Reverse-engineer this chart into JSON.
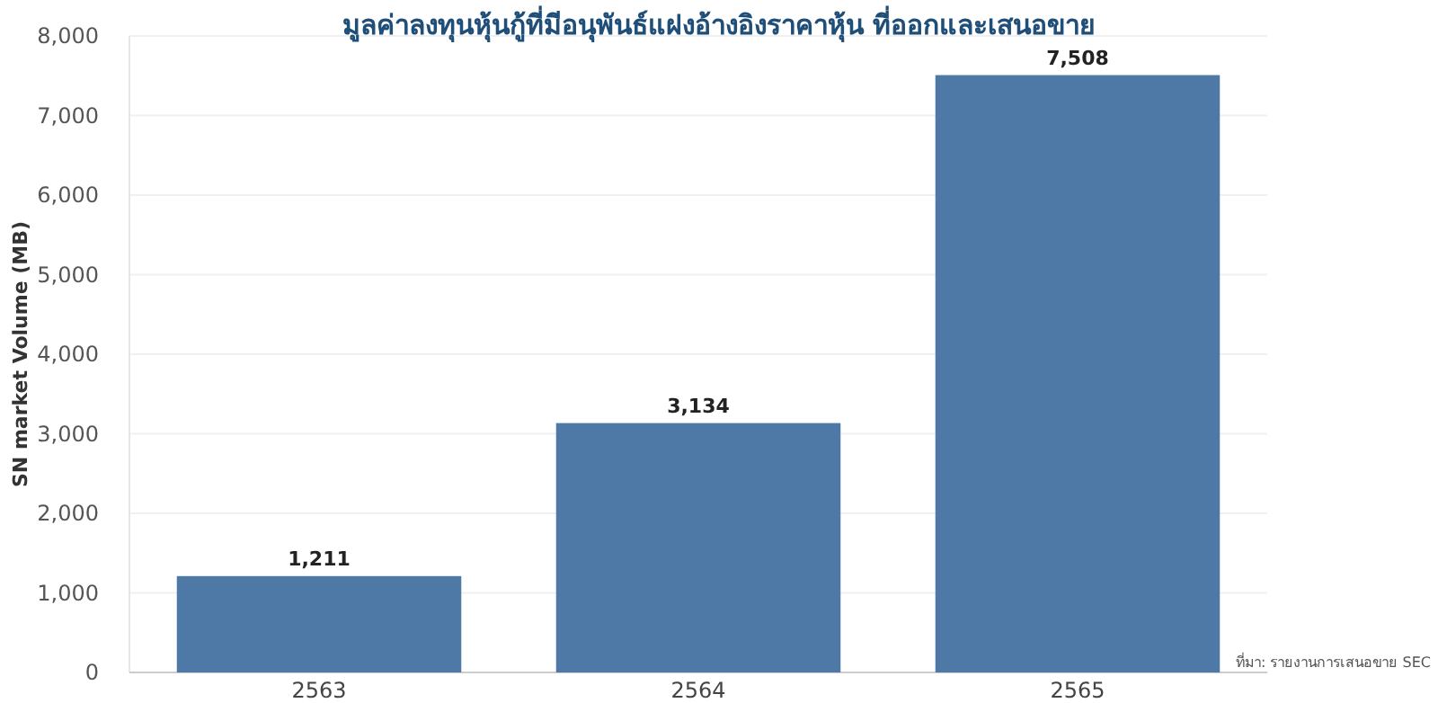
{
  "chart_data": {
    "type": "bar",
    "title": "มูลค่าลงทุนหุ้นกู้ที่มีอนุพันธ์แฝงอ้างอิงราคาหุ้น ที่ออกและเสนอขาย",
    "ylabel": "SN market Volume (MB)",
    "categories": [
      "2563",
      "2564",
      "2565"
    ],
    "values": [
      1211,
      3134,
      7508
    ],
    "color": "#4e79a7",
    "value_labels": [
      "1,211",
      "3,134",
      "7,508"
    ],
    "ylim": [
      0,
      8000
    ],
    "yticks": [
      {
        "value": 0,
        "label": "0"
      },
      {
        "value": 1000,
        "label": "1,000"
      },
      {
        "value": 2000,
        "label": "2,000"
      },
      {
        "value": 3000,
        "label": "3,000"
      },
      {
        "value": 4000,
        "label": "4,000"
      },
      {
        "value": 5000,
        "label": "5,000"
      },
      {
        "value": 6000,
        "label": "6,000"
      },
      {
        "value": 7000,
        "label": "7,000"
      },
      {
        "value": 8000,
        "label": "8,000"
      }
    ],
    "grid": "y",
    "annotations": [
      "ที่มา: รายงานการเสนอขาย SEC"
    ]
  }
}
